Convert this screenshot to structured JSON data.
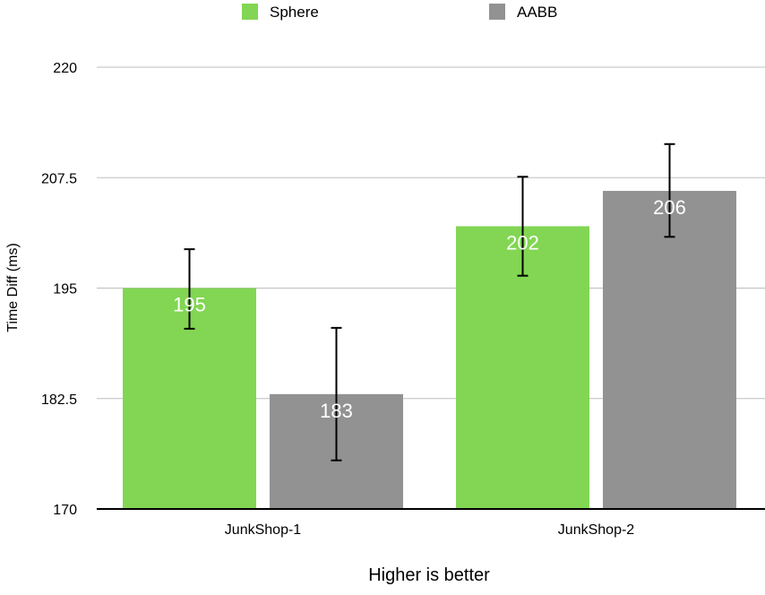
{
  "chart_data": {
    "type": "bar",
    "title": "",
    "xlabel": "Higher is better",
    "ylabel": "Time Diff (ms)",
    "ylim": [
      170,
      220
    ],
    "yticks": [
      170,
      182.5,
      195,
      207.5,
      220
    ],
    "ytick_labels": [
      "170",
      "182.5",
      "195",
      "207.5",
      "220"
    ],
    "grid": true,
    "legend_position": "top-center",
    "categories": [
      "JunkShop-1",
      "JunkShop-2"
    ],
    "series": [
      {
        "name": "Sphere",
        "color": "#82d653",
        "values": [
          195,
          202
        ],
        "value_labels": [
          "195",
          "202"
        ],
        "error_low": [
          190.4,
          196.4
        ],
        "error_high": [
          199.4,
          207.6
        ]
      },
      {
        "name": "AABB",
        "color": "#929292",
        "values": [
          183,
          206
        ],
        "value_labels": [
          "183",
          "206"
        ],
        "error_low": [
          175.5,
          200.8
        ],
        "error_high": [
          190.5,
          211.3
        ]
      }
    ]
  }
}
